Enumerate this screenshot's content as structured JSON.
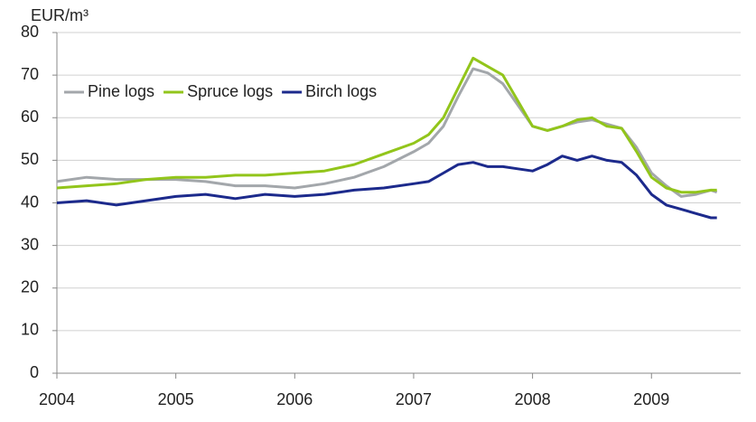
{
  "chart_data": {
    "type": "line",
    "y_label": "EUR/m³",
    "x": [
      2004,
      2004.25,
      2004.5,
      2004.75,
      2005,
      2005.25,
      2005.5,
      2005.75,
      2006,
      2006.25,
      2006.5,
      2006.75,
      2007,
      2007.125,
      2007.25,
      2007.375,
      2007.5,
      2007.625,
      2007.75,
      2007.875,
      2008,
      2008.125,
      2008.25,
      2008.375,
      2008.5,
      2008.625,
      2008.75,
      2008.875,
      2009,
      2009.125,
      2009.25,
      2009.375,
      2009.5,
      2009.55
    ],
    "series": [
      {
        "name": "Pine logs",
        "color": "#a3a7ab",
        "values": [
          45,
          46,
          45.5,
          45.5,
          45.5,
          45,
          44,
          44,
          43.5,
          44.5,
          46,
          48.5,
          52,
          54,
          58,
          65,
          71.5,
          70.5,
          68,
          63,
          58,
          57,
          58,
          59,
          59.5,
          58.5,
          57.5,
          53,
          47,
          44,
          41.5,
          42,
          43,
          42.5
        ]
      },
      {
        "name": "Spruce logs",
        "color": "#92c51b",
        "values": [
          43.5,
          44,
          44.5,
          45.5,
          46,
          46,
          46.5,
          46.5,
          47,
          47.5,
          49,
          51.5,
          54,
          56,
          60,
          67,
          74,
          72,
          70,
          64,
          58,
          57,
          58,
          59.5,
          60,
          58,
          57.5,
          52,
          46,
          43.5,
          42.5,
          42.5,
          43,
          43
        ]
      },
      {
        "name": "Birch logs",
        "color": "#1c2a8c",
        "values": [
          40,
          40.5,
          39.5,
          40.5,
          41.5,
          42,
          41,
          42,
          41.5,
          42,
          43,
          43.5,
          44.5,
          45,
          47,
          49,
          49.5,
          48.5,
          48.5,
          48,
          47.5,
          49,
          51,
          50,
          51,
          50,
          49.5,
          46.5,
          42,
          39.5,
          38.5,
          37.5,
          36.5,
          36.5
        ]
      }
    ],
    "xlim": [
      2004,
      2009.75
    ],
    "xticks": [
      2004,
      2005,
      2006,
      2007,
      2008,
      2009
    ],
    "ylim": [
      0,
      80
    ],
    "yticks": [
      0,
      10,
      20,
      30,
      40,
      50,
      60,
      70,
      80
    ],
    "grid": true,
    "legend": "top-left"
  }
}
